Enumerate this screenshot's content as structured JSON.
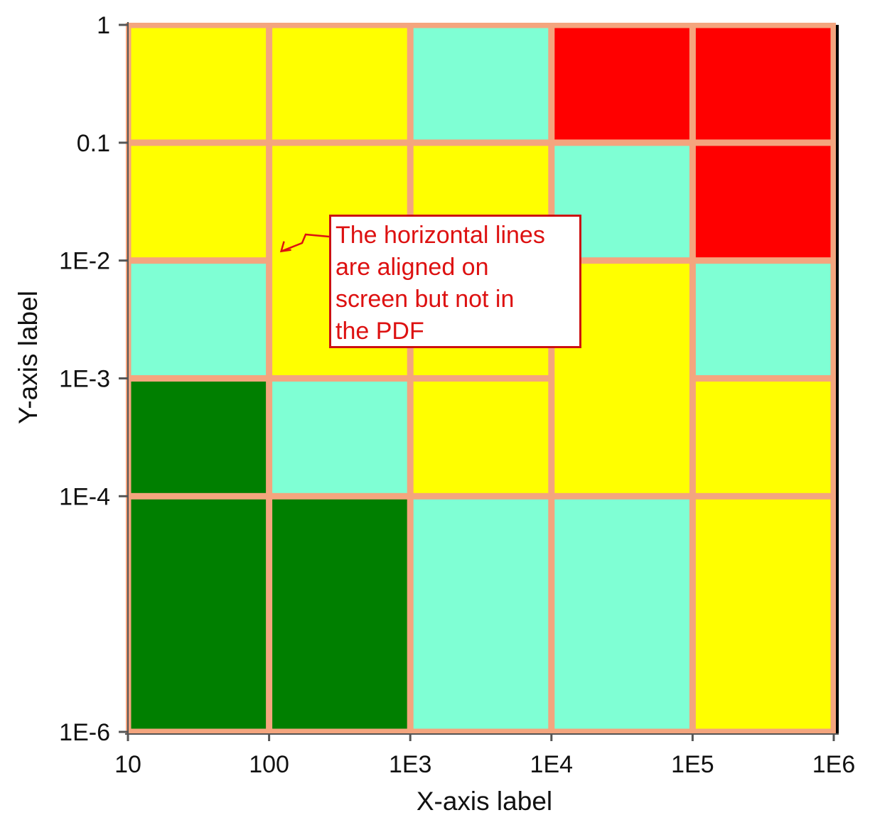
{
  "chart_data": {
    "type": "heatmap",
    "title": "",
    "xlabel": "X-axis label",
    "ylabel": "Y-axis label",
    "x_scale": "log",
    "y_scale": "log",
    "xlim": [
      10,
      1000000
    ],
    "ylim": [
      1e-06,
      1
    ],
    "x_ticks": [
      {
        "value": 10,
        "label": "10"
      },
      {
        "value": 100,
        "label": "100"
      },
      {
        "value": 1000,
        "label": "1E3"
      },
      {
        "value": 10000,
        "label": "1E4"
      },
      {
        "value": 100000,
        "label": "1E5"
      },
      {
        "value": 1000000,
        "label": "1E6"
      }
    ],
    "y_ticks": [
      {
        "value": 1,
        "label": "1"
      },
      {
        "value": 0.1,
        "label": "0.1"
      },
      {
        "value": 0.01,
        "label": "1E-2"
      },
      {
        "value": 0.001,
        "label": "1E-3"
      },
      {
        "value": 0.0001,
        "label": "1E-4"
      },
      {
        "value": 1e-06,
        "label": "1E-6"
      }
    ],
    "cell_border_color": "#f4a57e",
    "palette": {
      "yellow": "#ffff00",
      "aquamarine": "#7fffd4",
      "red": "#ff0000",
      "green": "#007f00"
    },
    "columns": [
      {
        "x_range": [
          10,
          100
        ],
        "cells": [
          {
            "y_range": [
              0.1,
              1
            ],
            "color": "yellow"
          },
          {
            "y_range": [
              0.01,
              0.1
            ],
            "color": "yellow"
          },
          {
            "y_range": [
              0.001,
              0.01
            ],
            "color": "aquamarine"
          },
          {
            "y_range": [
              0.0001,
              0.001
            ],
            "color": "green"
          },
          {
            "y_range": [
              1e-06,
              0.0001
            ],
            "color": "green"
          }
        ]
      },
      {
        "x_range": [
          100,
          1000
        ],
        "cells": [
          {
            "y_range": [
              0.1,
              1
            ],
            "color": "yellow"
          },
          {
            "y_range": [
              0.001,
              0.1
            ],
            "color": "yellow"
          },
          {
            "y_range": [
              0.0001,
              0.001
            ],
            "color": "aquamarine"
          },
          {
            "y_range": [
              1e-06,
              0.0001
            ],
            "color": "green"
          }
        ]
      },
      {
        "x_range": [
          1000,
          10000
        ],
        "cells": [
          {
            "y_range": [
              0.1,
              1
            ],
            "color": "aquamarine"
          },
          {
            "y_range": [
              0.001,
              0.1
            ],
            "color": "yellow"
          },
          {
            "y_range": [
              0.0001,
              0.001
            ],
            "color": "yellow"
          },
          {
            "y_range": [
              1e-06,
              0.0001
            ],
            "color": "aquamarine"
          }
        ]
      },
      {
        "x_range": [
          10000,
          100000
        ],
        "cells": [
          {
            "y_range": [
              0.1,
              1
            ],
            "color": "red"
          },
          {
            "y_range": [
              0.01,
              0.1
            ],
            "color": "aquamarine"
          },
          {
            "y_range": [
              0.0001,
              0.01
            ],
            "color": "yellow"
          },
          {
            "y_range": [
              1e-06,
              0.0001
            ],
            "color": "aquamarine"
          }
        ]
      },
      {
        "x_range": [
          100000,
          1000000
        ],
        "cells": [
          {
            "y_range": [
              0.1,
              1
            ],
            "color": "red"
          },
          {
            "y_range": [
              0.01,
              0.1
            ],
            "color": "red"
          },
          {
            "y_range": [
              0.001,
              0.01
            ],
            "color": "aquamarine"
          },
          {
            "y_range": [
              0.0001,
              0.001
            ],
            "color": "yellow"
          },
          {
            "y_range": [
              1e-06,
              0.0001
            ],
            "color": "yellow"
          }
        ]
      }
    ],
    "annotation": {
      "lines": [
        "The horizontal lines",
        "are aligned on",
        "screen but not in",
        "the PDF"
      ],
      "color": "#dd1111",
      "border_color": "#cc1111",
      "points_to": {
        "x": 100,
        "y": 0.01
      }
    }
  }
}
